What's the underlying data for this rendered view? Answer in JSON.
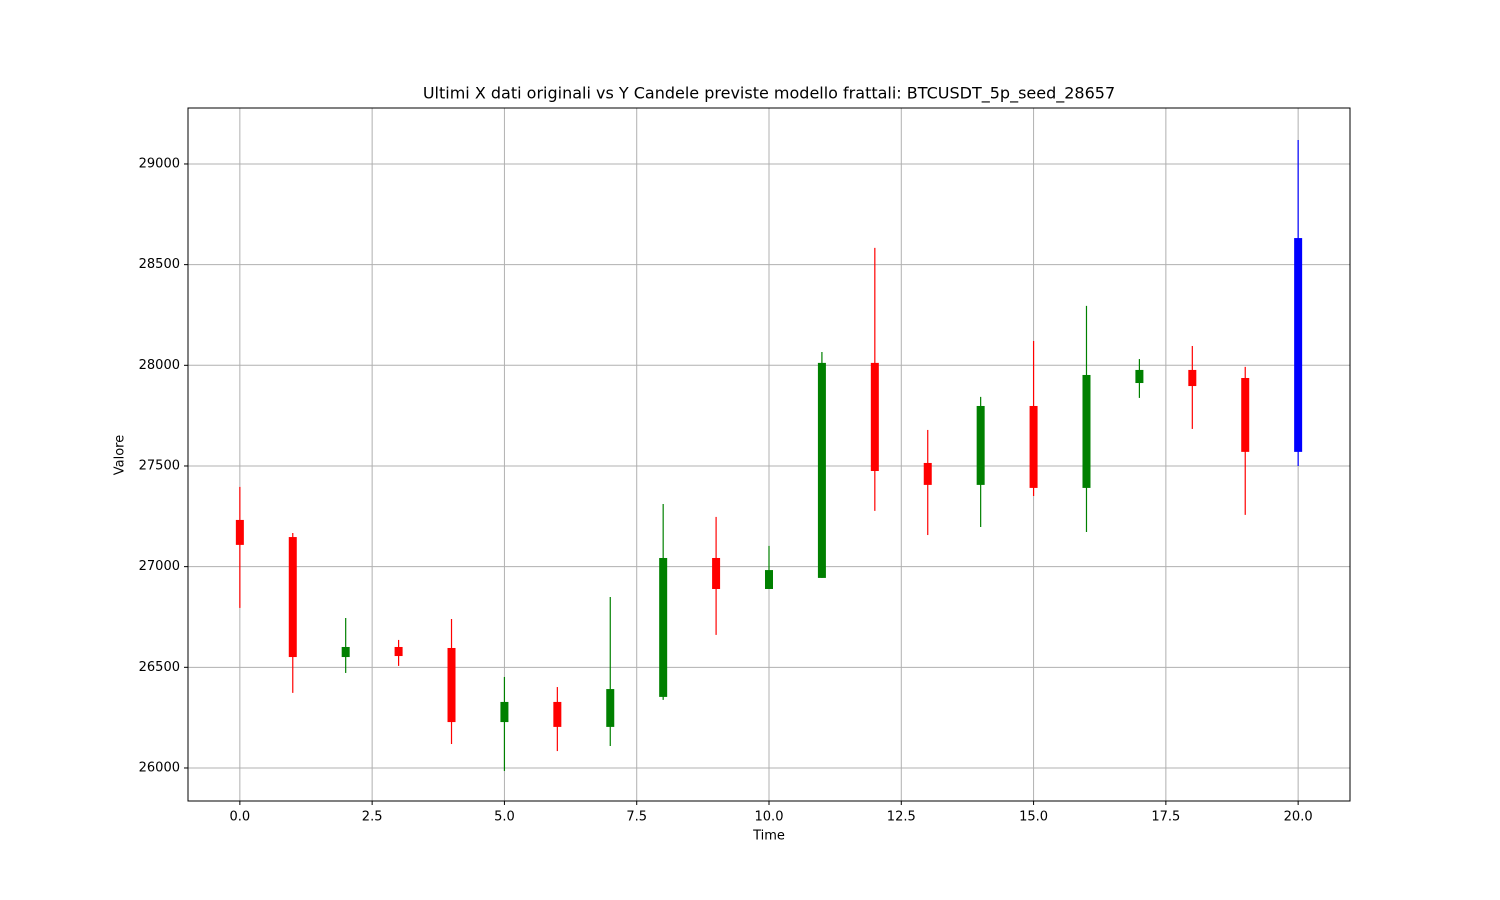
{
  "chart_data": {
    "type": "candlestick",
    "title": "Ultimi X dati originali vs Y Candele previste modello frattali: BTCUSDT_5p_seed_28657",
    "xlabel": "Time",
    "ylabel": "Valore",
    "x": [
      0,
      1,
      2,
      3,
      4,
      5,
      6,
      7,
      8,
      9,
      10,
      11,
      12,
      13,
      14,
      15,
      16,
      17,
      18,
      19,
      20
    ],
    "open": [
      27232,
      27147,
      26551,
      26601,
      26596,
      26228,
      26328,
      26204,
      26353,
      27043,
      26889,
      26944,
      28012,
      27515,
      27406,
      27798,
      27391,
      27912,
      27977,
      27937,
      27570
    ],
    "high": [
      27396,
      27167,
      26745,
      26636,
      26740,
      26452,
      26402,
      26849,
      27311,
      27247,
      27103,
      28066,
      28583,
      27679,
      27843,
      28121,
      28295,
      28031,
      28096,
      27992,
      29119
    ],
    "low": [
      26795,
      26373,
      26472,
      26507,
      26119,
      25985,
      26084,
      26109,
      26338,
      26661,
      26889,
      26944,
      27277,
      27157,
      27197,
      27351,
      27172,
      27838,
      27684,
      27257,
      27500
    ],
    "close": [
      27108,
      26551,
      26601,
      26556,
      26228,
      26328,
      26204,
      26392,
      27043,
      26889,
      26983,
      28012,
      27475,
      27406,
      27798,
      27391,
      27952,
      27977,
      27897,
      27570,
      28632
    ],
    "colors": [
      "red",
      "red",
      "green",
      "red",
      "red",
      "green",
      "red",
      "green",
      "green",
      "red",
      "green",
      "green",
      "red",
      "red",
      "green",
      "red",
      "green",
      "green",
      "red",
      "red",
      "blue"
    ],
    "xlim": [
      -0.98,
      20.98
    ],
    "ylim": [
      25836,
      29278
    ],
    "xticks": [
      {
        "value": 0,
        "label": "0.0"
      },
      2.5,
      {
        "value": 5,
        "label": "5.0"
      },
      7.5,
      {
        "value": 10,
        "label": "10.0"
      },
      12.5,
      {
        "value": 15,
        "label": "15.0"
      },
      17.5,
      {
        "value": 20,
        "label": "20.0"
      }
    ],
    "yticks": [
      26000,
      26500,
      27000,
      27500,
      28000,
      28500,
      29000
    ],
    "grid": true
  }
}
